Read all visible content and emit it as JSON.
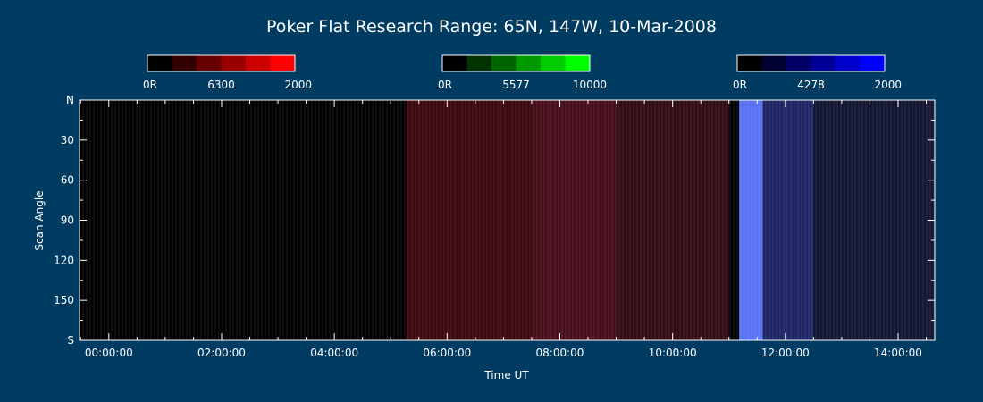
{
  "chart_data": {
    "type": "heatmap",
    "title": "Poker Flat Research Range: 65N, 147W, 10-Mar-2008",
    "xlabel": "Time UT",
    "ylabel": "Scan Angle",
    "x_ticks": [
      "00:00:00",
      "02:00:00",
      "04:00:00",
      "06:00:00",
      "08:00:00",
      "10:00:00",
      "12:00:00",
      "14:00:00"
    ],
    "x_tick_hours": [
      0,
      2,
      4,
      6,
      8,
      10,
      12,
      14
    ],
    "xlim_hours": [
      -0.52,
      14.65
    ],
    "y_ticks": [
      "N",
      "30",
      "60",
      "90",
      "120",
      "150",
      "S"
    ],
    "y_tick_values": [
      0,
      30,
      60,
      90,
      120,
      150,
      180
    ],
    "ylim": [
      0,
      180
    ],
    "grid": false,
    "colorbars": [
      {
        "name": "6300",
        "color": "#ff0000",
        "min_label": "0R",
        "mid_label": "6300",
        "max_label": "2000"
      },
      {
        "name": "5577",
        "color": "#00ff00",
        "min_label": "0R",
        "mid_label": "5577",
        "max_label": "10000"
      },
      {
        "name": "4278",
        "color": "#0000ff",
        "min_label": "0R",
        "mid_label": "4278",
        "max_label": "2000"
      }
    ],
    "data_start_hours": 5.28,
    "data_gap_hours": [
      11.0,
      11.18
    ],
    "segments": [
      {
        "x_start": 5.28,
        "x_end": 7.5,
        "dominant": "red",
        "r": 0.24,
        "g": 0.04,
        "b": 0.06
      },
      {
        "x_start": 7.5,
        "x_end": 9.0,
        "dominant": "red",
        "r": 0.28,
        "g": 0.06,
        "b": 0.1
      },
      {
        "x_start": 9.0,
        "x_end": 11.0,
        "dominant": "red",
        "r": 0.2,
        "g": 0.05,
        "b": 0.08
      },
      {
        "x_start": 11.18,
        "x_end": 11.6,
        "dominant": "blue",
        "r": 0.35,
        "g": 0.45,
        "b": 0.95
      },
      {
        "x_start": 11.6,
        "x_end": 12.5,
        "dominant": "blue",
        "r": 0.12,
        "g": 0.15,
        "b": 0.4
      },
      {
        "x_start": 12.5,
        "x_end": 14.65,
        "dominant": "blue",
        "r": 0.08,
        "g": 0.09,
        "b": 0.2
      }
    ]
  }
}
